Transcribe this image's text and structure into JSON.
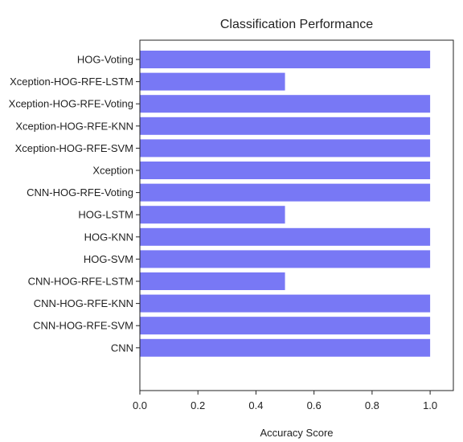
{
  "chart_data": {
    "type": "bar",
    "orientation": "horizontal",
    "title": "Classification Performance",
    "xlabel": "Accuracy Score",
    "ylabel": "",
    "xlim": [
      0,
      1.08
    ],
    "xticks": [
      "0.0",
      "0.2",
      "0.4",
      "0.6",
      "0.8",
      "1.0"
    ],
    "categories": [
      "HOG-Voting",
      "Xception-HOG-RFE-LSTM",
      "Xception-HOG-RFE-Voting",
      "Xception-HOG-RFE-KNN",
      "Xception-HOG-RFE-SVM",
      "Xception",
      "CNN-HOG-RFE-Voting",
      "HOG-LSTM",
      "HOG-KNN",
      "HOG-SVM",
      "CNN-HOG-RFE-LSTM",
      "CNN-HOG-RFE-KNN",
      "CNN-HOG-RFE-SVM",
      "CNN"
    ],
    "values": [
      1.0,
      0.5,
      1.0,
      1.0,
      1.0,
      1.0,
      1.0,
      0.5,
      1.0,
      1.0,
      0.5,
      1.0,
      1.0,
      1.0
    ],
    "bar_color": "#7878f5",
    "grid": false,
    "legend": "none"
  }
}
